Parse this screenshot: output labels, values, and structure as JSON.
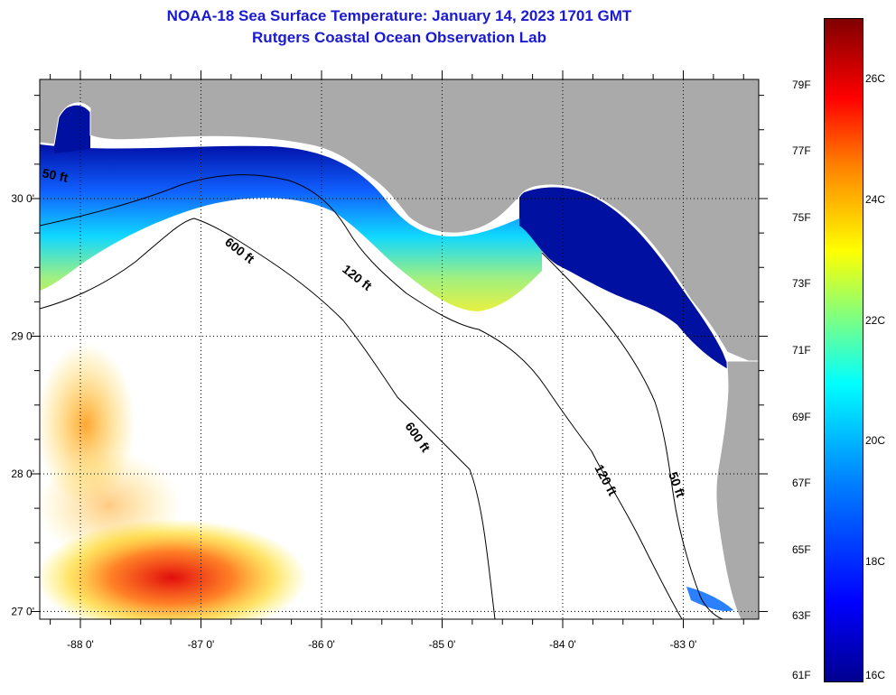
{
  "title": {
    "line1": "NOAA-18 Sea Surface Temperature:  January 14, 2023 1701 GMT",
    "line2": "Rutgers Coastal Ocean Observation Lab"
  },
  "map": {
    "lat_labels": [
      {
        "value": 30,
        "label": "30 0'"
      },
      {
        "value": 29,
        "label": "29 0'"
      },
      {
        "value": 28,
        "label": "28 0'"
      },
      {
        "value": 27,
        "label": "27 0'"
      }
    ],
    "lon_labels": [
      {
        "value": -88,
        "label": "-88 0'"
      },
      {
        "value": -87,
        "label": "-87 0'"
      },
      {
        "value": -86,
        "label": "-86 0'"
      },
      {
        "value": -85,
        "label": "-85 0'"
      },
      {
        "value": -84,
        "label": "-84 0'"
      },
      {
        "value": -83,
        "label": "-83 0'"
      }
    ],
    "depth_labels": [
      "600 ft",
      "120 ft",
      "600 ft",
      "120 ft",
      "50 ft",
      "50 ft"
    ],
    "colors": {
      "land": "#aaaaaa",
      "water": "#ffffff",
      "title": "#1a1ad2"
    }
  },
  "colorbar": {
    "range_f": [
      61,
      81
    ],
    "range_c": [
      16,
      27
    ],
    "f_labels": [
      "79F",
      "77F",
      "75F",
      "73F",
      "71F",
      "69F",
      "67F",
      "65F",
      "63F",
      "61F"
    ],
    "c_labels": [
      "26C",
      "24C",
      "22C",
      "20C",
      "18C",
      "16C"
    ]
  }
}
